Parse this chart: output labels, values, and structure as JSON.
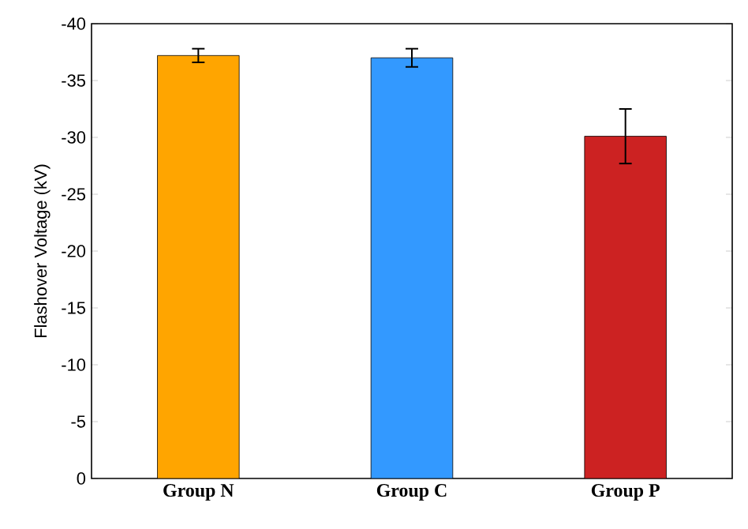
{
  "chart_data": {
    "type": "bar",
    "ylabel": "Flashover Voltage (kV)",
    "categories": [
      "Group N",
      "Group C",
      "Group P"
    ],
    "values": [
      -37.2,
      -37.0,
      -30.1
    ],
    "errors": [
      0.6,
      0.8,
      2.4
    ],
    "colors": [
      "#ffa500",
      "#3399ff",
      "#cc2222"
    ],
    "ylim": [
      0,
      -40
    ],
    "yticks": [
      0,
      -5,
      -10,
      -15,
      -20,
      -25,
      -30,
      -35,
      -40
    ]
  }
}
